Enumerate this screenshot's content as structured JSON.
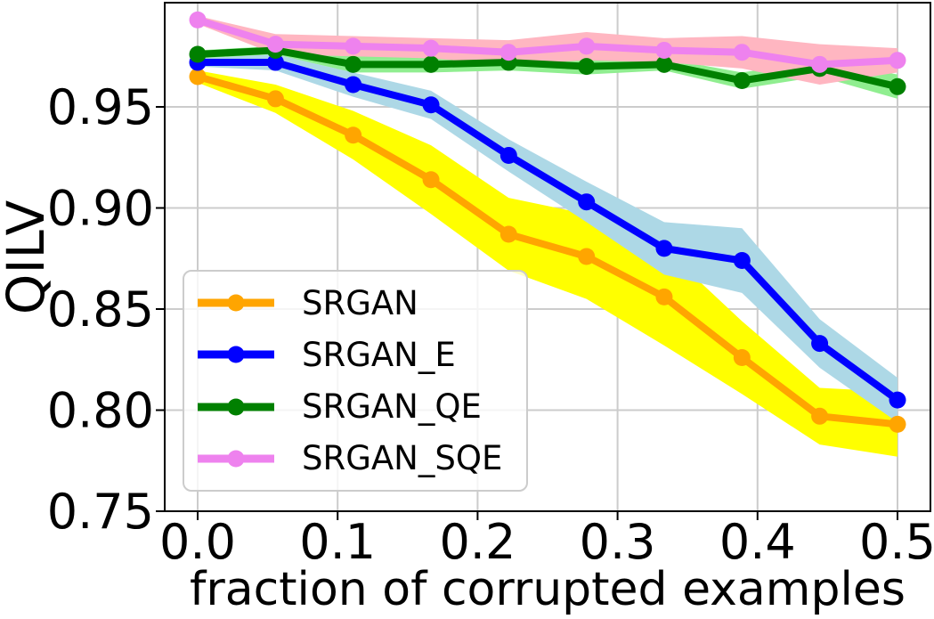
{
  "chart_data": {
    "type": "line",
    "title": "",
    "xlabel": "fraction of corrupted examples",
    "ylabel": "QILV",
    "x": [
      0.0,
      0.0556,
      0.1111,
      0.1667,
      0.2222,
      0.2778,
      0.3333,
      0.3889,
      0.4444,
      0.5
    ],
    "xtick_values": [
      0.0,
      0.1,
      0.2,
      0.3,
      0.4,
      0.5
    ],
    "xtick_labels": [
      "0.0",
      "0.1",
      "0.2",
      "0.3",
      "0.4",
      "0.5"
    ],
    "ytick_values": [
      0.75,
      0.8,
      0.85,
      0.9,
      0.95
    ],
    "ytick_labels": [
      "0.75",
      "0.80",
      "0.85",
      "0.90",
      "0.95"
    ],
    "xlim": [
      -0.024,
      0.524
    ],
    "ylim": [
      0.751,
      1.001
    ],
    "grid": true,
    "grid_color": "#cccccc",
    "legend_position": "center-left",
    "series": [
      {
        "name": "SRGAN",
        "color": "#FFA500",
        "band_color": "#FFFF00",
        "marker": "circle",
        "values": [
          0.965,
          0.954,
          0.936,
          0.914,
          0.887,
          0.876,
          0.856,
          0.826,
          0.797,
          0.793
        ],
        "band_halfwidth": [
          0.003,
          0.007,
          0.012,
          0.017,
          0.018,
          0.021,
          0.024,
          0.018,
          0.014,
          0.016
        ]
      },
      {
        "name": "SRGAN_E",
        "color": "#0000FF",
        "band_color": "#ADD8E6",
        "marker": "circle",
        "values": [
          0.972,
          0.972,
          0.961,
          0.951,
          0.926,
          0.903,
          0.88,
          0.874,
          0.833,
          0.805
        ],
        "band_halfwidth": [
          0.002,
          0.004,
          0.006,
          0.007,
          0.008,
          0.01,
          0.013,
          0.016,
          0.012,
          0.011
        ]
      },
      {
        "name": "SRGAN_QE",
        "color": "#008000",
        "band_color": "#90EE90",
        "marker": "circle",
        "values": [
          0.976,
          0.978,
          0.971,
          0.971,
          0.972,
          0.97,
          0.971,
          0.963,
          0.969,
          0.96
        ],
        "band_halfwidth": [
          0.002,
          0.002,
          0.004,
          0.004,
          0.004,
          0.004,
          0.003,
          0.004,
          0.004,
          0.006
        ]
      },
      {
        "name": "SRGAN_SQE",
        "color": "#EE82EE",
        "band_color": "#FFB6C1",
        "marker": "circle",
        "values": [
          0.993,
          0.981,
          0.98,
          0.979,
          0.977,
          0.98,
          0.978,
          0.977,
          0.971,
          0.973
        ],
        "band_halfwidth": [
          0.002,
          0.005,
          0.005,
          0.005,
          0.006,
          0.007,
          0.006,
          0.008,
          0.01,
          0.006
        ]
      }
    ]
  }
}
